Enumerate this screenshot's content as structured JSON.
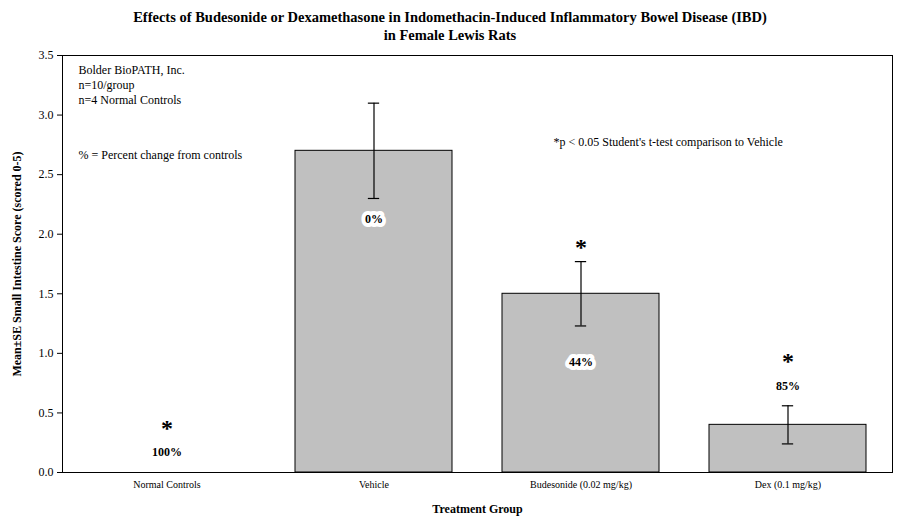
{
  "chart_data": {
    "type": "bar",
    "title": "Effects of Budesonide or Dexamethasone in Indomethacin-Induced Inflammatory Bowel Disease (IBD) in Female Lewis Rats",
    "xlabel": "Treatment Group",
    "ylabel": "Mean±SE Small Intestine Score (scored 0-5)",
    "categories": [
      "Normal Controls",
      "Vehicle",
      "Budesonide (0.02 mg/kg)",
      "Dex (0.1 mg/kg)"
    ],
    "values": [
      0,
      2.7,
      1.5,
      0.4
    ],
    "errors": [
      0,
      0.4,
      0.27,
      0.16
    ],
    "percent_labels": [
      "100%",
      "0%",
      "44%",
      "85%"
    ],
    "significance": [
      "*",
      null,
      "*",
      "*"
    ],
    "annotations": [
      "Bolder BioPATH, Inc.",
      "n=10/group",
      "n=4 Normal Controls",
      "% = Percent change from controls",
      "*p < 0.05 Student's t-test comparison to Vehicle"
    ],
    "color": "#c0c0c0",
    "ylim": [
      0,
      3.5
    ],
    "yticks": [
      {
        "value": 0,
        "label": "0.0"
      },
      0.5,
      {
        "value": 1,
        "label": "1.0"
      },
      1.5,
      {
        "value": 2,
        "label": "2.0"
      },
      2.5,
      {
        "value": 3,
        "label": "3.0"
      },
      3.5
    ],
    "grid": false
  }
}
